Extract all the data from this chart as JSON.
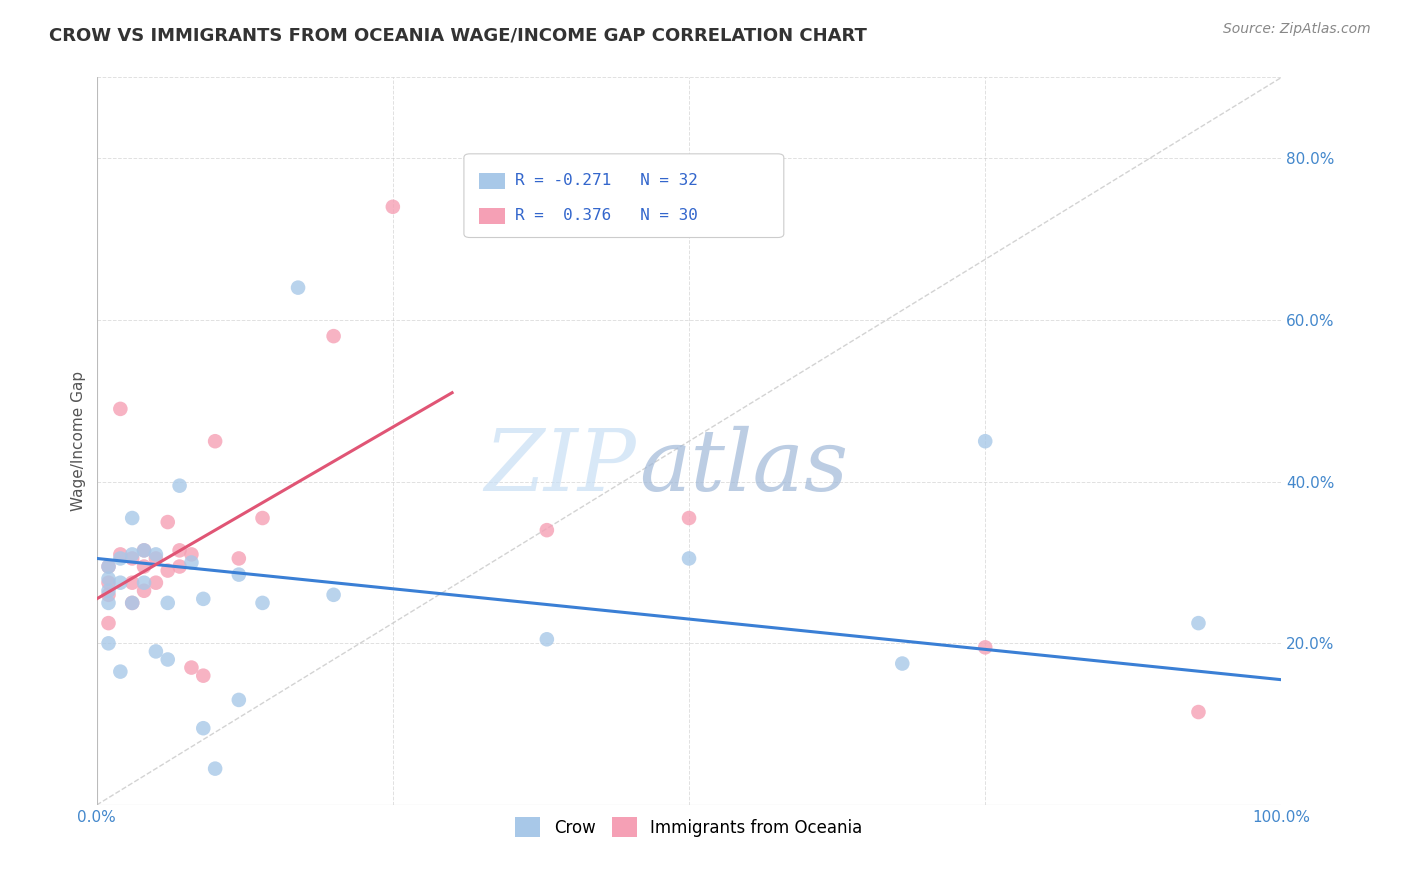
{
  "title": "CROW VS IMMIGRANTS FROM OCEANIA WAGE/INCOME GAP CORRELATION CHART",
  "source": "Source: ZipAtlas.com",
  "ylabel": "Wage/Income Gap",
  "xlim": [
    0.0,
    1.0
  ],
  "ylim": [
    0.0,
    0.9
  ],
  "grid_color": "#cccccc",
  "background_color": "#ffffff",
  "watermark_zip": "ZIP",
  "watermark_atlas": "atlas",
  "crow_R": -0.271,
  "crow_N": 32,
  "oceania_R": 0.376,
  "oceania_N": 30,
  "crow_color": "#a8c8e8",
  "oceania_color": "#f5a0b5",
  "crow_line_color": "#3a7fd5",
  "oceania_line_color": "#e05575",
  "ref_line_color": "#c8c8c8",
  "crow_x": [
    0.01,
    0.01,
    0.01,
    0.01,
    0.01,
    0.02,
    0.02,
    0.02,
    0.03,
    0.03,
    0.03,
    0.04,
    0.04,
    0.05,
    0.05,
    0.06,
    0.06,
    0.07,
    0.08,
    0.09,
    0.09,
    0.1,
    0.12,
    0.12,
    0.14,
    0.17,
    0.2,
    0.38,
    0.5,
    0.68,
    0.75,
    0.93
  ],
  "crow_y": [
    0.295,
    0.28,
    0.265,
    0.25,
    0.2,
    0.305,
    0.275,
    0.165,
    0.355,
    0.31,
    0.25,
    0.315,
    0.275,
    0.31,
    0.19,
    0.25,
    0.18,
    0.395,
    0.3,
    0.255,
    0.095,
    0.045,
    0.13,
    0.285,
    0.25,
    0.64,
    0.26,
    0.205,
    0.305,
    0.175,
    0.45,
    0.225
  ],
  "oceania_x": [
    0.01,
    0.01,
    0.01,
    0.01,
    0.02,
    0.02,
    0.03,
    0.03,
    0.03,
    0.04,
    0.04,
    0.04,
    0.05,
    0.05,
    0.06,
    0.06,
    0.07,
    0.07,
    0.08,
    0.08,
    0.09,
    0.1,
    0.12,
    0.14,
    0.2,
    0.25,
    0.38,
    0.5,
    0.75,
    0.93
  ],
  "oceania_y": [
    0.295,
    0.275,
    0.26,
    0.225,
    0.49,
    0.31,
    0.305,
    0.275,
    0.25,
    0.315,
    0.295,
    0.265,
    0.305,
    0.275,
    0.35,
    0.29,
    0.315,
    0.295,
    0.31,
    0.17,
    0.16,
    0.45,
    0.305,
    0.355,
    0.58,
    0.74,
    0.34,
    0.355,
    0.195,
    0.115
  ],
  "crow_trend": [
    0.0,
    1.0,
    0.305,
    0.155
  ],
  "oceania_trend": [
    0.0,
    0.3,
    0.255,
    0.51
  ],
  "ref_line_x": [
    0.0,
    1.0
  ],
  "ref_line_y": [
    0.0,
    0.9
  ],
  "title_fontsize": 13,
  "axis_label_fontsize": 11,
  "tick_fontsize": 11,
  "source_fontsize": 10,
  "marker_size": 110
}
